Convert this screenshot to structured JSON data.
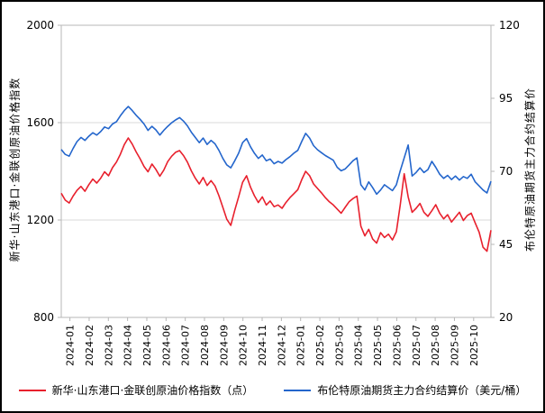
{
  "page": {
    "background": "#ffffff",
    "outer_border_color": "#000000",
    "plot_border_color": "#b7b7b7",
    "gridline_color": "#d9d9d9",
    "tick_text_color": "#000000"
  },
  "chart_data": {
    "type": "line",
    "title": "",
    "grid": "horizontal major gridlines, light gray; full plot border",
    "legend_position": "bottom",
    "x_axis": {
      "tick_labels": [
        "2024-01",
        "2024-02",
        "2024-03",
        "2024-04",
        "2024-05",
        "2024-06",
        "2024-07",
        "2024-08",
        "2024-09",
        "2024-10",
        "2024-11",
        "2024-12",
        "2025-01",
        "2025-02",
        "2025-03",
        "2025-04",
        "2025-05",
        "2025-06",
        "2025-07",
        "2025-08",
        "2025-09",
        "2025-10"
      ],
      "label_rotation_deg": -90,
      "points_per_month": 5
    },
    "left_axis": {
      "title": "新华·山东港口·金联创原油价格指数",
      "min": 800,
      "max": 2000,
      "ticks": [
        800,
        1200,
        1600,
        2000
      ]
    },
    "right_axis": {
      "title": "布伦特原油期货主力合约结算价",
      "min": 20,
      "max": 120,
      "ticks": [
        20,
        45,
        70,
        95,
        120
      ]
    },
    "series": [
      {
        "name": "新华·山东港口·金联创原油价格指数（点）",
        "axis": "left",
        "unit": "点",
        "color": "#e8202d",
        "values": [
          1310,
          1282,
          1270,
          1298,
          1322,
          1338,
          1318,
          1345,
          1368,
          1352,
          1372,
          1398,
          1382,
          1415,
          1438,
          1470,
          1510,
          1537,
          1512,
          1480,
          1452,
          1420,
          1398,
          1430,
          1408,
          1380,
          1405,
          1440,
          1462,
          1478,
          1485,
          1465,
          1438,
          1402,
          1372,
          1348,
          1375,
          1342,
          1362,
          1340,
          1300,
          1252,
          1203,
          1178,
          1240,
          1295,
          1355,
          1382,
          1335,
          1300,
          1272,
          1295,
          1262,
          1278,
          1255,
          1262,
          1248,
          1272,
          1292,
          1308,
          1325,
          1365,
          1400,
          1382,
          1348,
          1330,
          1312,
          1292,
          1275,
          1262,
          1245,
          1228,
          1252,
          1275,
          1288,
          1298,
          1175,
          1135,
          1162,
          1122,
          1105,
          1148,
          1128,
          1142,
          1118,
          1152,
          1262,
          1390,
          1295,
          1232,
          1248,
          1268,
          1232,
          1215,
          1238,
          1263,
          1228,
          1205,
          1222,
          1192,
          1212,
          1232,
          1198,
          1218,
          1228,
          1188,
          1150,
          1088,
          1072,
          1158
        ]
      },
      {
        "name": "布伦特原油期货主力合约结算价（美元/桶）",
        "axis": "right",
        "unit": "美元/桶",
        "color": "#2466cc",
        "values": [
          77.5,
          75.8,
          75.2,
          77.8,
          80.2,
          81.6,
          80.6,
          82,
          83.2,
          82.4,
          83.6,
          85.2,
          84.6,
          86.2,
          87,
          89,
          90.8,
          92.2,
          90.8,
          89.2,
          87.8,
          86.2,
          84,
          85.4,
          84.2,
          82.4,
          84,
          85.4,
          86.6,
          87.6,
          88.4,
          87.2,
          85.6,
          83.4,
          81.6,
          79.8,
          81.4,
          79.2,
          80.6,
          79.4,
          77.2,
          74.4,
          72.2,
          71.2,
          73.6,
          76.2,
          79.8,
          81.2,
          78.4,
          76.2,
          74.4,
          75.6,
          73.6,
          74.2,
          72.6,
          73.4,
          72.8,
          74,
          75,
          76.2,
          77.2,
          80.2,
          83,
          81.4,
          78.8,
          77.4,
          76.4,
          75.4,
          74.6,
          73.8,
          71.4,
          70.2,
          70.8,
          72.2,
          73.6,
          74.6,
          65.4,
          63.6,
          66.4,
          64.4,
          62.2,
          63.6,
          65.4,
          64.4,
          63.4,
          65.4,
          70.2,
          74.6,
          79,
          68.4,
          69.6,
          71.2,
          69.6,
          70.6,
          73.4,
          71.4,
          69,
          67.6,
          68.6,
          67.2,
          68.4,
          67,
          68.2,
          67.6,
          69,
          66.4,
          65,
          63.6,
          62.6,
          66.6
        ]
      }
    ]
  }
}
